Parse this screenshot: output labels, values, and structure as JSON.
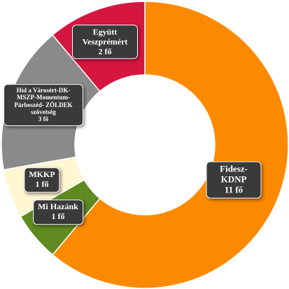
{
  "chart_data": {
    "type": "pie",
    "categories": [
      "Fidesz-KDNP",
      "Mi Hazánk",
      "MKKP",
      "Híd a Városért-DK-MSZP-Momentum-Párbeszéd- ZÖLDEK szövetség",
      "Együtt Veszprémért"
    ],
    "values": [
      11,
      1,
      1,
      3,
      2
    ],
    "value_labels": [
      "11 fő",
      "1 fő",
      "1 fő",
      "3 fő",
      "2 fő"
    ],
    "colors": [
      "#fb8a00",
      "#5e8a1f",
      "#fff6d2",
      "#8a8a8a",
      "#d5163f"
    ]
  }
}
